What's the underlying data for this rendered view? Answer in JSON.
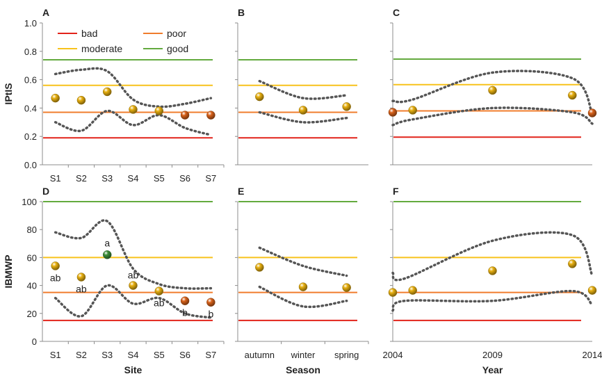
{
  "legend": [
    {
      "label": "bad",
      "color": "#e2231a"
    },
    {
      "label": "poor",
      "color": "#f07c2c"
    },
    {
      "label": "moderate",
      "color": "#f7c21b"
    },
    {
      "label": "good",
      "color": "#63aa3e"
    }
  ],
  "point_colors": {
    "gold": "#e8b010",
    "orange": "#d9621a",
    "green": "#3e8f3a"
  },
  "chart_data": [
    {
      "panel": "A",
      "type": "scatter",
      "categories": [
        "S1",
        "S2",
        "S3",
        "S4",
        "S5",
        "S6",
        "S7"
      ],
      "ylim": [
        0,
        1
      ],
      "yticks": [
        "0.0",
        "0.2",
        "0.4",
        "0.6",
        "0.8",
        "1.0"
      ],
      "ylabel": "IPtIS",
      "xlabel": "",
      "values": [
        0.47,
        0.455,
        0.515,
        0.39,
        0.38,
        0.35,
        0.35
      ],
      "colors": [
        "gold",
        "gold",
        "gold",
        "gold",
        "gold",
        "orange",
        "orange"
      ],
      "thresholds": {
        "bad": 0.19,
        "poor": 0.37,
        "moderate": 0.56,
        "good": 0.74
      },
      "upper": [
        0.64,
        0.67,
        0.66,
        0.46,
        0.41,
        0.43,
        0.47
      ],
      "lower": [
        0.3,
        0.24,
        0.38,
        0.28,
        0.35,
        0.26,
        0.21
      ],
      "legend": "top-left"
    },
    {
      "panel": "B",
      "type": "scatter",
      "categories": [
        "",
        "",
        ""
      ],
      "ylim": [
        0,
        1
      ],
      "values": [
        0.48,
        0.385,
        0.41
      ],
      "colors": [
        "gold",
        "gold",
        "gold"
      ],
      "thresholds": {
        "bad": 0.19,
        "poor": 0.37,
        "moderate": 0.56,
        "good": 0.74
      },
      "upper": [
        0.59,
        0.47,
        0.49
      ],
      "lower": [
        0.37,
        0.3,
        0.33
      ]
    },
    {
      "panel": "C",
      "type": "scatter",
      "xlim": [
        2004,
        2014
      ],
      "xticks": [],
      "ylim": [
        0,
        1
      ],
      "x": [
        2004,
        2005,
        2009,
        2013,
        2014
      ],
      "values": [
        0.37,
        0.385,
        0.525,
        0.49,
        0.365
      ],
      "colors": [
        "orange",
        "gold",
        "gold",
        "gold",
        "orange"
      ],
      "thresholds": {
        "bad": 0.195,
        "poor": 0.38,
        "moderate": 0.565,
        "good": 0.745
      },
      "upper_x": [
        2004,
        2005,
        2009,
        2013,
        2014
      ],
      "upper": [
        0.45,
        0.46,
        0.65,
        0.61,
        0.36
      ],
      "lower_x": [
        2004,
        2005,
        2009,
        2013,
        2014
      ],
      "lower": [
        0.28,
        0.32,
        0.4,
        0.37,
        0.29
      ]
    },
    {
      "panel": "D",
      "type": "scatter",
      "categories": [
        "S1",
        "S2",
        "S3",
        "S4",
        "S5",
        "S6",
        "S7"
      ],
      "ylim": [
        0,
        100
      ],
      "yticks": [
        "0",
        "20",
        "40",
        "60",
        "80",
        "100"
      ],
      "ylabel": "IBMWP",
      "xlabel": "Site",
      "values": [
        54,
        46,
        62,
        40,
        36,
        29,
        28
      ],
      "colors": [
        "gold",
        "gold",
        "green",
        "gold",
        "gold",
        "orange",
        "orange"
      ],
      "annotations": [
        "ab",
        "ab",
        "a",
        "ab",
        "ab",
        "b",
        "b"
      ],
      "thresholds": {
        "bad": 15,
        "poor": 35,
        "moderate": 60,
        "good": 100
      },
      "upper": [
        78,
        74,
        86,
        52,
        41,
        38,
        38
      ],
      "lower": [
        31,
        18,
        40,
        27,
        31,
        20,
        17
      ]
    },
    {
      "panel": "E",
      "type": "scatter",
      "categories": [
        "autumn",
        "winter",
        "spring"
      ],
      "ylim": [
        0,
        100
      ],
      "xlabel": "Season",
      "values": [
        53,
        39,
        38.5
      ],
      "colors": [
        "gold",
        "gold",
        "gold"
      ],
      "thresholds": {
        "bad": 15,
        "poor": 35,
        "moderate": 60,
        "good": 100
      },
      "upper": [
        67,
        54,
        47
      ],
      "lower": [
        39,
        25,
        29
      ]
    },
    {
      "panel": "F",
      "type": "scatter",
      "xlim": [
        2004,
        2014
      ],
      "xticks": [
        2004,
        2009,
        2014
      ],
      "ylim": [
        0,
        100
      ],
      "xlabel": "Year",
      "x": [
        2004,
        2005,
        2009,
        2013,
        2014
      ],
      "values": [
        35,
        36.5,
        50.5,
        55.5,
        36.5
      ],
      "colors": [
        "gold",
        "gold",
        "gold",
        "gold",
        "gold"
      ],
      "thresholds": {
        "bad": 15,
        "poor": 35,
        "moderate": 60,
        "good": 100
      },
      "upper_x": [
        2004,
        2004.6,
        2009,
        2013,
        2014
      ],
      "upper": [
        49,
        45,
        72,
        76,
        47
      ],
      "lower_x": [
        2004,
        2004.6,
        2009,
        2013,
        2014
      ],
      "lower": [
        22,
        29,
        29,
        36,
        26
      ]
    }
  ]
}
